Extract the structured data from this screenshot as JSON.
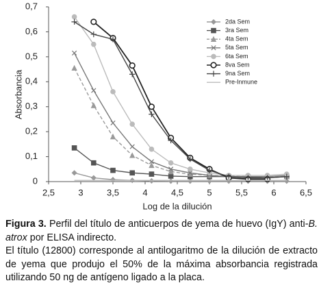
{
  "chart_data": {
    "type": "line",
    "x_label": "Log de la dilución",
    "y_label": "Absorbancia",
    "x": [
      2.9,
      3.2,
      3.5,
      3.8,
      4.1,
      4.4,
      4.7,
      5.0,
      5.3,
      5.6,
      5.9,
      6.2
    ],
    "xlim": [
      2.5,
      6.5
    ],
    "xticks": [
      {
        "value": 2.5,
        "label": "2,5"
      },
      3,
      {
        "value": 3.5,
        "label": "3,5"
      },
      4,
      {
        "value": 4.5,
        "label": "4,5"
      },
      5,
      {
        "value": 5.5,
        "label": "5,5"
      },
      6,
      {
        "value": 6.5,
        "label": "6,5"
      }
    ],
    "ylim": [
      0,
      0.7
    ],
    "yticks": [
      0,
      {
        "value": 0.1,
        "label": "0,1"
      },
      {
        "value": 0.2,
        "label": "0,2"
      },
      {
        "value": 0.3,
        "label": "0,3"
      },
      {
        "value": 0.4,
        "label": "0,4"
      },
      {
        "value": 0.5,
        "label": "0,5"
      },
      {
        "value": 0.6,
        "label": "0,6"
      },
      {
        "value": 0.7,
        "label": "0,7"
      }
    ],
    "grid": false,
    "legend": "upper-right",
    "series": [
      {
        "name": "2da Sem",
        "color": "#999999",
        "marker": "diamond",
        "dash": false,
        "values": [
          0.035,
          0.015,
          0.008,
          0.005,
          0.003,
          0.002,
          0.002,
          0.002,
          0.002,
          0.002,
          0.002,
          0.002
        ]
      },
      {
        "name": "3ra Sem",
        "color": "#555555",
        "marker": "square",
        "dash": false,
        "values": [
          0.135,
          0.075,
          0.045,
          0.035,
          0.03,
          0.022,
          0.02,
          0.02,
          0.02,
          0.018,
          0.015,
          0.02
        ]
      },
      {
        "name": "4ta Sem",
        "color": "#9a9a9a",
        "marker": "triangle",
        "dash": true,
        "values": [
          0.455,
          0.305,
          0.18,
          0.105,
          0.065,
          0.04,
          0.03,
          0.025,
          0.022,
          0.02,
          0.02,
          0.02
        ]
      },
      {
        "name": "5ta Sem",
        "color": "#777777",
        "marker": "x",
        "dash": false,
        "values": [
          0.515,
          0.365,
          0.235,
          0.14,
          0.08,
          0.05,
          0.035,
          0.025,
          0.02,
          0.02,
          0.02,
          0.025
        ]
      },
      {
        "name": "6ta Sem",
        "color": "#bbbbbb",
        "marker": "circle",
        "dash": false,
        "values": [
          0.66,
          0.55,
          0.36,
          0.23,
          0.13,
          0.075,
          0.05,
          0.035,
          0.025,
          0.025,
          0.025,
          0.03
        ]
      },
      {
        "name": "8va Sem",
        "color": "#222222",
        "marker": "open-circle",
        "dash": false,
        "values": [
          null,
          0.64,
          0.575,
          0.465,
          0.3,
          0.175,
          0.095,
          0.05,
          0.015,
          0.01,
          0.01,
          null
        ]
      },
      {
        "name": "9na Sem",
        "color": "#444444",
        "marker": "plus",
        "dash": false,
        "values": [
          0.64,
          0.59,
          0.57,
          0.43,
          0.27,
          0.165,
          0.09,
          0.045,
          0.02,
          0.015,
          0.015,
          0.02
        ]
      },
      {
        "name": "Pre-Inmune",
        "color": "#bbbbbb",
        "marker": "none",
        "dash": false,
        "values": [
          0.005,
          0.005,
          0.005,
          0.005,
          0.005,
          0.005,
          0.005,
          0.005,
          0.005,
          0.005,
          0.005,
          0.005
        ]
      }
    ]
  },
  "caption": {
    "label": "Figura 3.",
    "text_before": " Perfil del título de anticuerpos de yema de huevo (IgY) anti-",
    "italic": "B. atrox",
    "text_after": " por ELISA indirecto.",
    "note": "El título (12800) corresponde al antilogaritmo de la dilución de extracto de yema que produjo el 50% de la máxima absorbancia registrada utilizando 50 ng de antígeno ligado a la placa."
  }
}
